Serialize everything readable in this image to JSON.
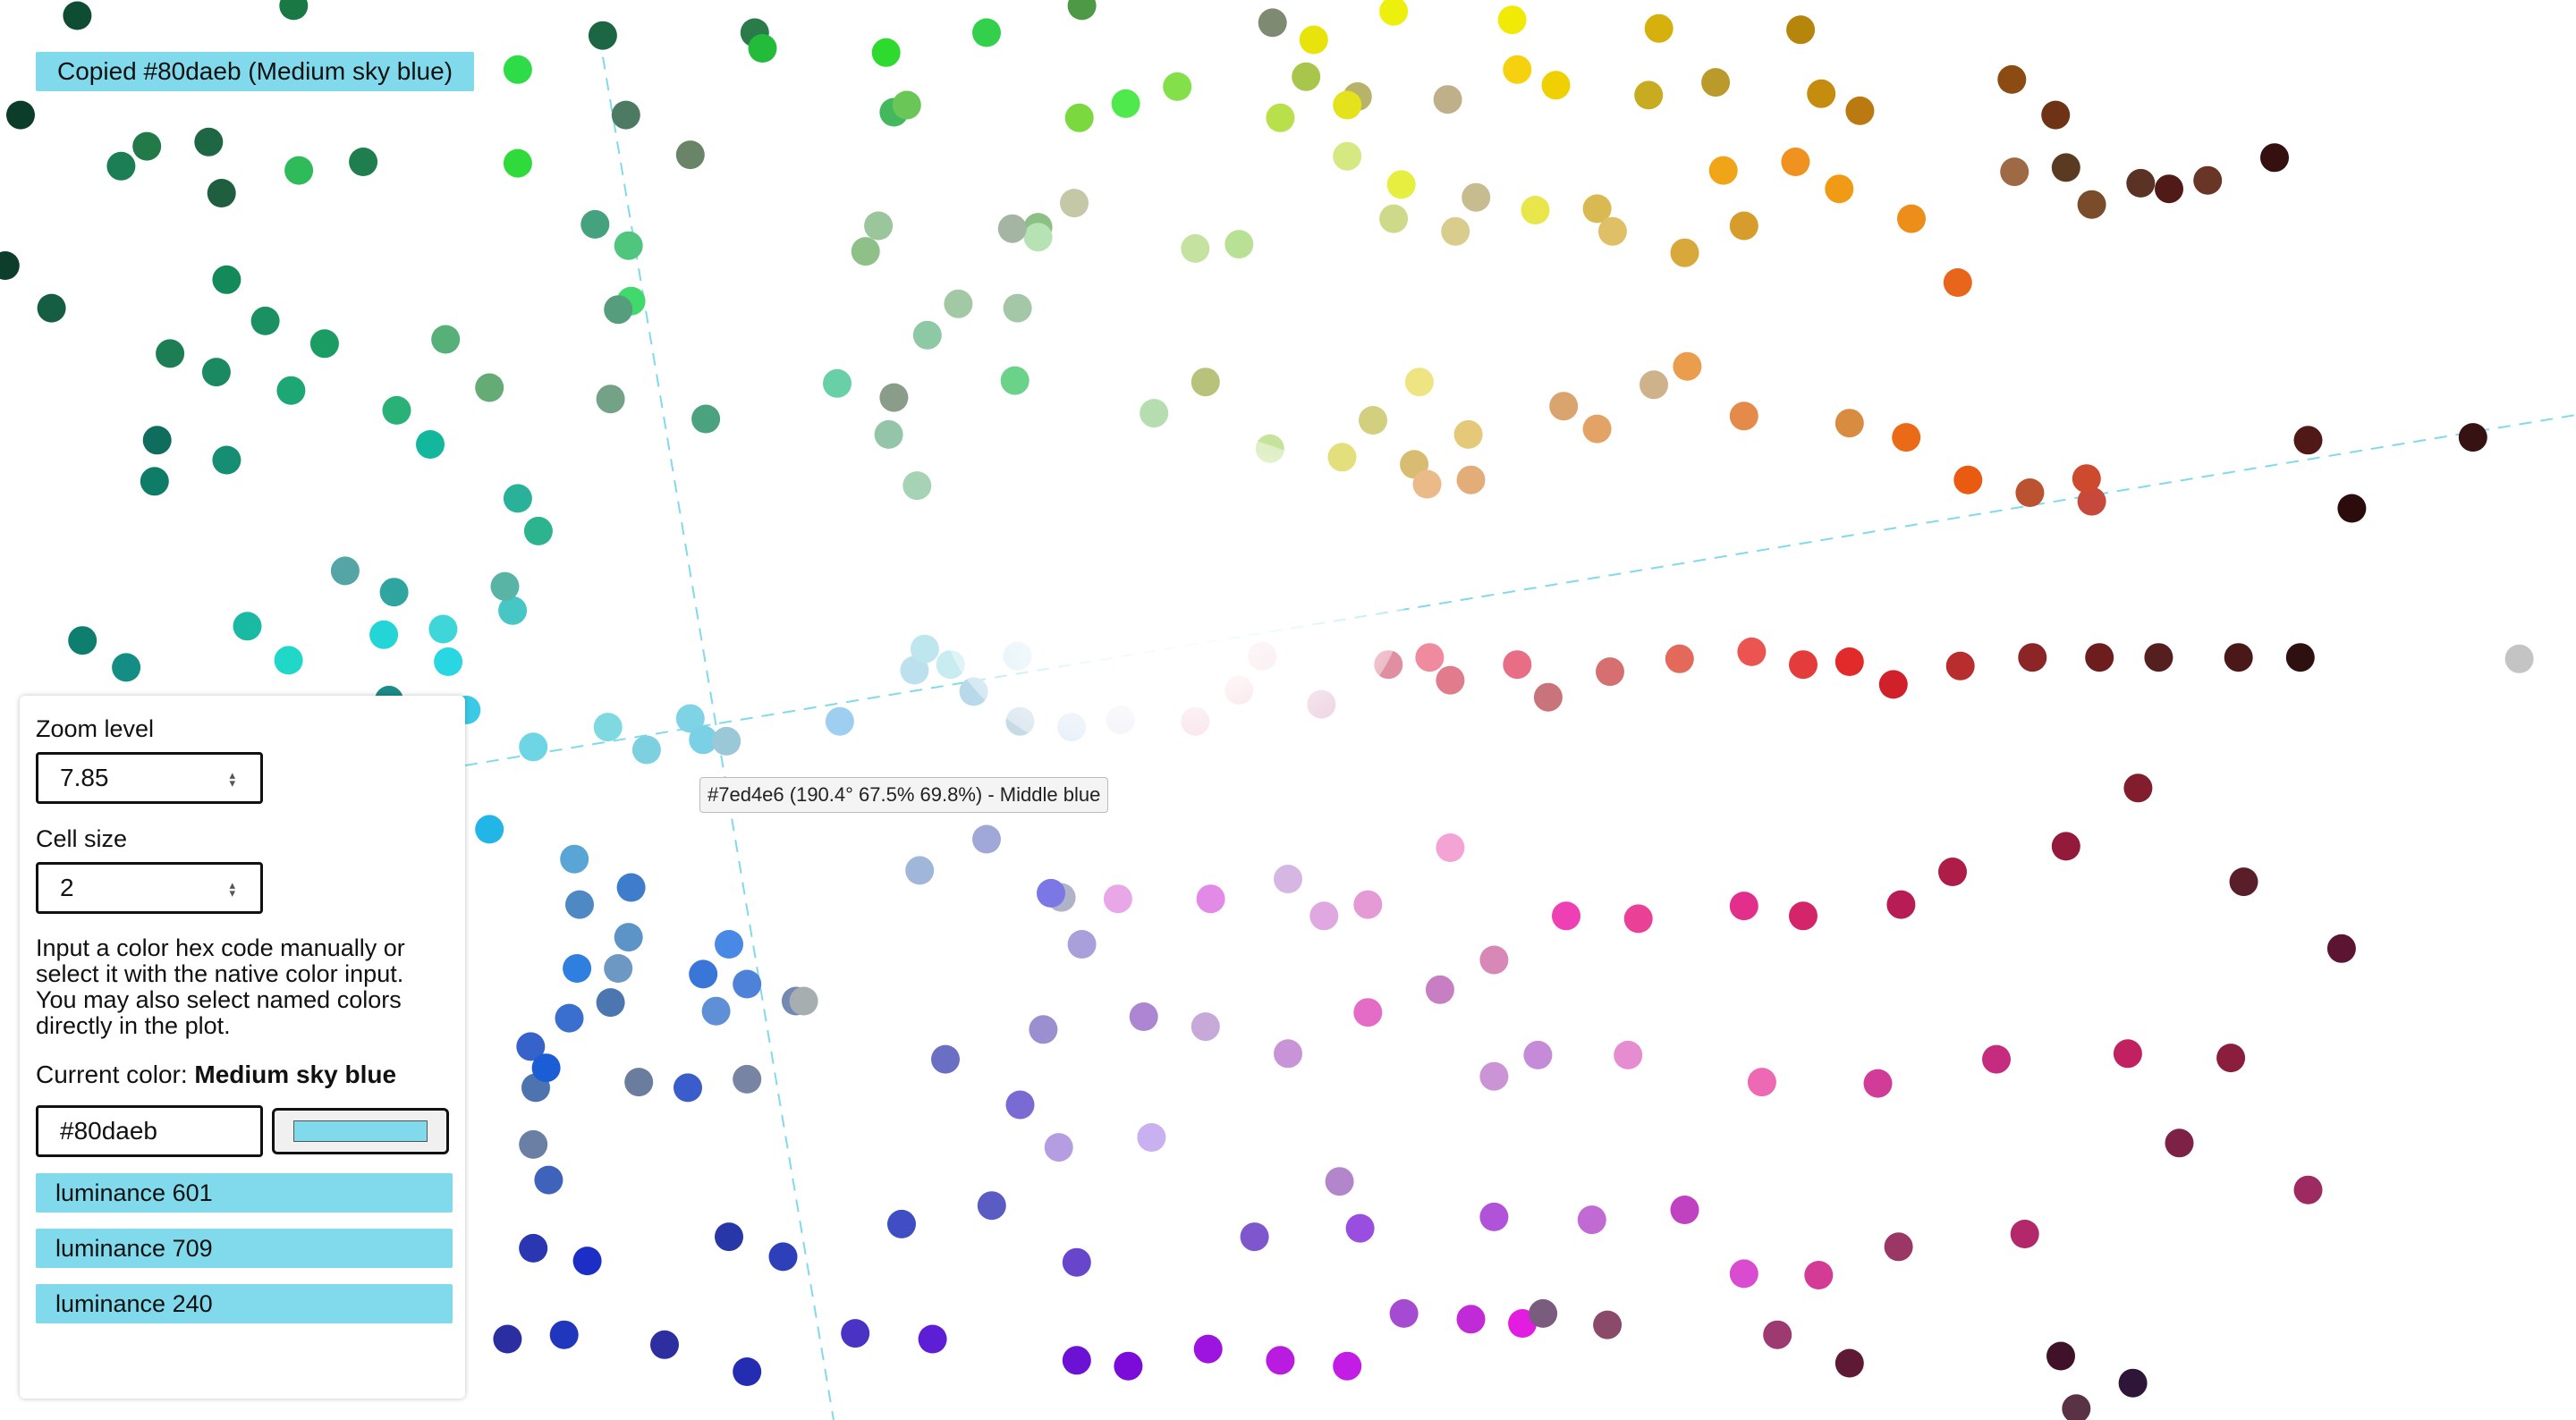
{
  "toast": {
    "text": "Copied #80daeb (Medium sky blue)"
  },
  "tooltip": {
    "text": "#7ed4e6 (190.4° 67.5% 69.8%) - Middle blue"
  },
  "panel": {
    "zoom_label": "Zoom level",
    "zoom_value": "7.85",
    "cell_label": "Cell size",
    "cell_value": "2",
    "info_line1": "Input a color hex code manually or select it with the native color input.",
    "info_line2": "You may also select named colors directly in the plot.",
    "current_label": "Current color:",
    "current_name": "Medium sky blue",
    "hex_value": "#80daeb",
    "swatch_color": "#80daeb",
    "buttons": [
      "luminance 601",
      "luminance 709",
      "luminance 240"
    ]
  },
  "colors": {
    "accent": "#80daeb",
    "axis_line": "#80daeb"
  },
  "plot_points": [
    [
      "#0e4d33",
      0.03,
      0.011
    ],
    [
      "#1a7845",
      0.114,
      0.004
    ],
    [
      "#1d6644",
      0.234,
      0.025
    ],
    [
      "#2a7a4a",
      0.293,
      0.023
    ],
    [
      "#22bb3a",
      0.296,
      0.034
    ],
    [
      "#2fda2f",
      0.344,
      0.037
    ],
    [
      "#33d04b",
      0.383,
      0.023
    ],
    [
      "#4c9a46",
      0.42,
      0.004
    ],
    [
      "#7e8b71",
      0.494,
      0.016
    ],
    [
      "#e8e30b",
      0.51,
      0.028
    ],
    [
      "#edf00c",
      0.541,
      0.008
    ],
    [
      "#f1ea06",
      0.587,
      0.014
    ],
    [
      "#d6b00d",
      0.644,
      0.02
    ],
    [
      "#b6860c",
      0.699,
      0.021
    ],
    [
      "#0c3c2a",
      0.008,
      0.081
    ],
    [
      "#1c7e55",
      0.047,
      0.117
    ],
    [
      "#227a48",
      0.057,
      0.103
    ],
    [
      "#1e6744",
      0.081,
      0.1
    ],
    [
      "#1f5e3f",
      0.086,
      0.136
    ],
    [
      "#2fbb5a",
      0.116,
      0.12
    ],
    [
      "#1f7e4e",
      0.141,
      0.114
    ],
    [
      "#2ddc47",
      0.201,
      0.049
    ],
    [
      "#2edb3a",
      0.201,
      0.115
    ],
    [
      "#4c7a63",
      0.243,
      0.081
    ],
    [
      "#6a8467",
      0.268,
      0.109
    ],
    [
      "#43b85c",
      0.347,
      0.079
    ],
    [
      "#6ac657",
      0.352,
      0.074
    ],
    [
      "#7bd83f",
      0.419,
      0.083
    ],
    [
      "#83e04a",
      0.457,
      0.061
    ],
    [
      "#4fe84d",
      0.437,
      0.073
    ],
    [
      "#b7e04b",
      0.497,
      0.083
    ],
    [
      "#a9c64c",
      0.507,
      0.054
    ],
    [
      "#b7b469",
      0.527,
      0.068
    ],
    [
      "#e4e21b",
      0.523,
      0.074
    ],
    [
      "#bfb08a",
      0.562,
      0.07
    ],
    [
      "#f6d10f",
      0.589,
      0.049
    ],
    [
      "#f0d000",
      0.604,
      0.06
    ],
    [
      "#c8ab21",
      0.64,
      0.067
    ],
    [
      "#ba9a2a",
      0.666,
      0.058
    ],
    [
      "#c68c0d",
      0.707,
      0.066
    ],
    [
      "#bb7911",
      0.722,
      0.078
    ],
    [
      "#8b4b13",
      0.781,
      0.056
    ],
    [
      "#6d3314",
      0.798,
      0.081
    ],
    [
      "#5a3a20",
      0.802,
      0.118
    ],
    [
      "#351010",
      0.883,
      0.111
    ],
    [
      "#501a17",
      0.842,
      0.133
    ],
    [
      "#148a5b",
      0.088,
      0.197
    ],
    [
      "#1a9063",
      0.103,
      0.226
    ],
    [
      "#1d7e55",
      0.066,
      0.249
    ],
    [
      "#1b8a63",
      0.084,
      0.262
    ],
    [
      "#155d43",
      0.02,
      0.217
    ],
    [
      "#0d3e2c",
      0.002,
      0.187
    ],
    [
      "#1b9c63",
      0.126,
      0.242
    ],
    [
      "#1ca774",
      0.113,
      0.275
    ],
    [
      "#2ab177",
      0.154,
      0.289
    ],
    [
      "#56b077",
      0.173,
      0.239
    ],
    [
      "#65ab76",
      0.19,
      0.273
    ],
    [
      "#4fc57d",
      0.244,
      0.173
    ],
    [
      "#41d96c",
      0.245,
      0.212
    ],
    [
      "#44a37e",
      0.231,
      0.158
    ],
    [
      "#559d7d",
      0.24,
      0.218
    ],
    [
      "#9bc59b",
      0.341,
      0.159
    ],
    [
      "#8ec087",
      0.336,
      0.177
    ],
    [
      "#8dc9a4",
      0.36,
      0.236
    ],
    [
      "#a3c9a4",
      0.372,
      0.214
    ],
    [
      "#a4c8a7",
      0.395,
      0.217
    ],
    [
      "#8dc085",
      0.403,
      0.16
    ],
    [
      "#b6e2b4",
      0.403,
      0.167
    ],
    [
      "#c4c8a7",
      0.417,
      0.143
    ],
    [
      "#a4b6a3",
      0.393,
      0.161
    ],
    [
      "#c5e2a1",
      0.464,
      0.175
    ],
    [
      "#b8e196",
      0.481,
      0.172
    ],
    [
      "#d6e882",
      0.523,
      0.11
    ],
    [
      "#cfd98a",
      0.541,
      0.154
    ],
    [
      "#e6ef40",
      0.544,
      0.13
    ],
    [
      "#d9cd8e",
      0.565,
      0.163
    ],
    [
      "#c6bc90",
      0.573,
      0.139
    ],
    [
      "#e8e64a",
      0.596,
      0.148
    ],
    [
      "#d9b951",
      0.62,
      0.147
    ],
    [
      "#e0c066",
      0.626,
      0.163
    ],
    [
      "#d9a83a",
      0.654,
      0.178
    ],
    [
      "#f0a417",
      0.669,
      0.12
    ],
    [
      "#d69d2c",
      0.677,
      0.159
    ],
    [
      "#f09220",
      0.697,
      0.114
    ],
    [
      "#f09a15",
      0.714,
      0.133
    ],
    [
      "#ed8e1a",
      0.742,
      0.154
    ],
    [
      "#e7661b",
      0.76,
      0.199
    ],
    [
      "#9d6a45",
      0.782,
      0.121
    ],
    [
      "#7b4c2a",
      0.812,
      0.144
    ],
    [
      "#5a3325",
      0.831,
      0.129
    ],
    [
      "#693527",
      0.857,
      0.127
    ],
    [
      "#0e6d5c",
      0.061,
      0.31
    ],
    [
      "#0e7c67",
      0.06,
      0.339
    ],
    [
      "#158e74",
      0.088,
      0.324
    ],
    [
      "#13b89c",
      0.167,
      0.313
    ],
    [
      "#2ab199",
      0.201,
      0.351
    ],
    [
      "#2cb48f",
      0.209,
      0.374
    ],
    [
      "#74a286",
      0.237,
      0.281
    ],
    [
      "#4aa27e",
      0.274,
      0.295
    ],
    [
      "#68cfa6",
      0.325,
      0.27
    ],
    [
      "#8a9c8a",
      0.347,
      0.28
    ],
    [
      "#6bd28a",
      0.394,
      0.268
    ],
    [
      "#94c5a8",
      0.345,
      0.306
    ],
    [
      "#a6d3b3",
      0.356,
      0.342
    ],
    [
      "#b5ddaf",
      0.448,
      0.291
    ],
    [
      "#b9c27a",
      0.468,
      0.269
    ],
    [
      "#c7e29a",
      0.493,
      0.316
    ],
    [
      "#d2d07e",
      0.533,
      0.296
    ],
    [
      "#e4df7d",
      0.521,
      0.322
    ],
    [
      "#d8bc72",
      0.549,
      0.327
    ],
    [
      "#efe482",
      0.551,
      0.269
    ],
    [
      "#e6c879",
      0.57,
      0.306
    ],
    [
      "#eabb89",
      0.554,
      0.341
    ],
    [
      "#e3ad7a",
      0.571,
      0.338
    ],
    [
      "#d9a46d",
      0.607,
      0.286
    ],
    [
      "#e3a367",
      0.62,
      0.302
    ],
    [
      "#cdb28b",
      0.642,
      0.271
    ],
    [
      "#eb9d4e",
      0.655,
      0.258
    ],
    [
      "#e48a4a",
      0.677,
      0.293
    ],
    [
      "#d78c40",
      0.718,
      0.298
    ],
    [
      "#eb6a18",
      0.74,
      0.308
    ],
    [
      "#ea5b12",
      0.764,
      0.338
    ],
    [
      "#bc5330",
      0.788,
      0.347
    ],
    [
      "#c6493b",
      0.812,
      0.353
    ],
    [
      "#cd4a2e",
      0.81,
      0.337
    ],
    [
      "#511818",
      0.896,
      0.31
    ],
    [
      "#2b0b0b",
      0.913,
      0.358
    ],
    [
      "#361212",
      0.96,
      0.308
    ],
    [
      "#0e7e6f",
      0.032,
      0.451
    ],
    [
      "#148e85",
      0.049,
      0.47
    ],
    [
      "#1ab9a4",
      0.096,
      0.441
    ],
    [
      "#20d7c8",
      0.112,
      0.465
    ],
    [
      "#23d5d6",
      0.149,
      0.447
    ],
    [
      "#3ed6d8",
      0.172,
      0.443
    ],
    [
      "#2fa5a0",
      0.153,
      0.417
    ],
    [
      "#47c6c6",
      0.199,
      0.43
    ],
    [
      "#1c8b89",
      0.151,
      0.493
    ],
    [
      "#29d7e2",
      0.174,
      0.466
    ],
    [
      "#3bc9e8",
      0.181,
      0.5
    ],
    [
      "#55a4a6",
      0.134,
      0.402
    ],
    [
      "#5ab4a6",
      0.196,
      0.413
    ],
    [
      "#22b6e6",
      0.19,
      0.584
    ],
    [
      "#6ed5e4",
      0.207,
      0.526
    ],
    [
      "#7fd9e1",
      0.236,
      0.512
    ],
    [
      "#7dd0e0",
      0.251,
      0.528
    ],
    [
      "#7ed4e6",
      0.268,
      0.506
    ],
    [
      "#7ad0e5",
      0.273,
      0.521
    ],
    [
      "#9ac8d7",
      0.282,
      0.522
    ],
    [
      "#9ecff0",
      0.326,
      0.508
    ],
    [
      "#bde0ee",
      0.355,
      0.472
    ],
    [
      "#bde6ef",
      0.359,
      0.457
    ],
    [
      "#c8ecf0",
      0.369,
      0.468
    ],
    [
      "#cbe6f2",
      0.395,
      0.462
    ],
    [
      "#b8d9e9",
      0.378,
      0.487
    ],
    [
      "#c7dbe6",
      0.396,
      0.508
    ],
    [
      "#d6e5f4",
      0.416,
      0.512
    ],
    [
      "#e8e6f0",
      0.435,
      0.507
    ],
    [
      "#f1c4d0",
      0.464,
      0.508
    ],
    [
      "#f2b8c2",
      0.481,
      0.486
    ],
    [
      "#eaa8b6",
      0.49,
      0.462
    ],
    [
      "#e2b9cf",
      0.513,
      0.496
    ],
    [
      "#e08ea2",
      0.539,
      0.468
    ],
    [
      "#f08a9e",
      0.555,
      0.463
    ],
    [
      "#e17c8d",
      0.563,
      0.479
    ],
    [
      "#e76e84",
      0.589,
      0.468
    ],
    [
      "#c9747a",
      0.601,
      0.491
    ],
    [
      "#d67070",
      0.625,
      0.473
    ],
    [
      "#e36a5b",
      0.652,
      0.464
    ],
    [
      "#eb5450",
      0.68,
      0.459
    ],
    [
      "#e33c3a",
      0.7,
      0.468
    ],
    [
      "#e12a2a",
      0.718,
      0.466
    ],
    [
      "#d0202a",
      0.735,
      0.482
    ],
    [
      "#b82d2d",
      0.761,
      0.469
    ],
    [
      "#8c2525",
      0.789,
      0.463
    ],
    [
      "#6d1d1d",
      0.815,
      0.463
    ],
    [
      "#561f1f",
      0.838,
      0.463
    ],
    [
      "#4a1818",
      0.869,
      0.463
    ],
    [
      "#2e1010",
      0.893,
      0.463
    ],
    [
      "#c4c4c4",
      0.978,
      0.464
    ],
    [
      "#58a5d6",
      0.223,
      0.605
    ],
    [
      "#4f89c4",
      0.225,
      0.637
    ],
    [
      "#3e7dcb",
      0.245,
      0.625
    ],
    [
      "#5c94c8",
      0.244,
      0.66
    ],
    [
      "#6e98c4",
      0.24,
      0.682
    ],
    [
      "#4b76b0",
      0.237,
      0.706
    ],
    [
      "#2e7fe0",
      0.224,
      0.682
    ],
    [
      "#3a6fcf",
      0.221,
      0.717
    ],
    [
      "#3563c9",
      0.206,
      0.737
    ],
    [
      "#4d74af",
      0.208,
      0.766
    ],
    [
      "#1a5dd4",
      0.212,
      0.752
    ],
    [
      "#6a7d9f",
      0.248,
      0.762
    ],
    [
      "#6a7fa3",
      0.207,
      0.806
    ],
    [
      "#3f62ba",
      0.213,
      0.831
    ],
    [
      "#3a5dcb",
      0.267,
      0.766
    ],
    [
      "#3a75d8",
      0.273,
      0.686
    ],
    [
      "#4989e6",
      0.283,
      0.665
    ],
    [
      "#5f90d7",
      0.278,
      0.712
    ],
    [
      "#4d82d8",
      0.29,
      0.693
    ],
    [
      "#7488b4",
      0.309,
      0.705
    ],
    [
      "#7784a4",
      0.29,
      0.76
    ],
    [
      "#a7aeaf",
      0.312,
      0.705
    ],
    [
      "#8e9ebc",
      0.333,
      0.56
    ],
    [
      "#a1b7da",
      0.357,
      0.613
    ],
    [
      "#9fa8d6",
      0.383,
      0.591
    ],
    [
      "#b0b2c8",
      0.412,
      0.632
    ],
    [
      "#a99fdb",
      0.42,
      0.665
    ],
    [
      "#7b78e6",
      0.408,
      0.629
    ],
    [
      "#e8a8e8",
      0.434,
      0.633
    ],
    [
      "#e38ae7",
      0.47,
      0.633
    ],
    [
      "#d6b7e3",
      0.5,
      0.619
    ],
    [
      "#e0a8e0",
      0.514,
      0.645
    ],
    [
      "#e59ad6",
      0.531,
      0.637
    ],
    [
      "#f3a3d4",
      0.563,
      0.597
    ],
    [
      "#e46bc6",
      0.531,
      0.713
    ],
    [
      "#c77ec3",
      0.559,
      0.697
    ],
    [
      "#d788b7",
      0.58,
      0.676
    ],
    [
      "#ef3fb4",
      0.608,
      0.645
    ],
    [
      "#ea4096",
      0.636,
      0.647
    ],
    [
      "#e22f8b",
      0.677,
      0.638
    ],
    [
      "#d4256b",
      0.7,
      0.645
    ],
    [
      "#b71c54",
      0.738,
      0.637
    ],
    [
      "#ae1c48",
      0.758,
      0.614
    ],
    [
      "#931a3a",
      0.802,
      0.596
    ],
    [
      "#821d2d",
      0.83,
      0.555
    ],
    [
      "#5a1d2a",
      0.871,
      0.621
    ],
    [
      "#6a6fc4",
      0.367,
      0.746
    ],
    [
      "#7a6ad4",
      0.396,
      0.778
    ],
    [
      "#9b8fd0",
      0.405,
      0.725
    ],
    [
      "#b49de0",
      0.411,
      0.808
    ],
    [
      "#c9b0f0",
      0.447,
      0.801
    ],
    [
      "#ad86d2",
      0.444,
      0.716
    ],
    [
      "#c7a9d9",
      0.468,
      0.723
    ],
    [
      "#c993d7",
      0.5,
      0.742
    ],
    [
      "#b386cb",
      0.52,
      0.832
    ],
    [
      "#cb94d5",
      0.58,
      0.758
    ],
    [
      "#c58ad8",
      0.597,
      0.743
    ],
    [
      "#e68cd1",
      0.632,
      0.743
    ],
    [
      "#ed69b3",
      0.684,
      0.762
    ],
    [
      "#d23c99",
      0.729,
      0.763
    ],
    [
      "#c52c80",
      0.775,
      0.746
    ],
    [
      "#c12061",
      0.826,
      0.742
    ],
    [
      "#8b1d3d",
      0.866,
      0.745
    ],
    [
      "#5b1532",
      0.909,
      0.668
    ],
    [
      "#2a37b0",
      0.207,
      0.879
    ],
    [
      "#1d2ec6",
      0.228,
      0.888
    ],
    [
      "#2837a8",
      0.283,
      0.871
    ],
    [
      "#2d3fb9",
      0.304,
      0.885
    ],
    [
      "#3f4ec2",
      0.35,
      0.862
    ],
    [
      "#5b5bc4",
      0.385,
      0.849
    ],
    [
      "#6846cc",
      0.418,
      0.889
    ],
    [
      "#7e57cf",
      0.487,
      0.871
    ],
    [
      "#9a4ee0",
      0.528,
      0.865
    ],
    [
      "#b053d9",
      0.58,
      0.857
    ],
    [
      "#c16ad3",
      0.618,
      0.859
    ],
    [
      "#c042c0",
      0.654,
      0.852
    ],
    [
      "#d94ccf",
      0.677,
      0.897
    ],
    [
      "#d43b94",
      0.706,
      0.898
    ],
    [
      "#9a3764",
      0.737,
      0.878
    ],
    [
      "#b2286a",
      0.786,
      0.869
    ],
    [
      "#7d2146",
      0.846,
      0.805
    ],
    [
      "#9d2a61",
      0.896,
      0.838
    ],
    [
      "#2a2ea0",
      0.197,
      0.943
    ],
    [
      "#2036bd",
      0.219,
      0.94
    ],
    [
      "#2d2ea0",
      0.258,
      0.947
    ],
    [
      "#242cb2",
      0.29,
      0.966
    ],
    [
      "#4932c4",
      0.332,
      0.939
    ],
    [
      "#5d1ed6",
      0.362,
      0.943
    ],
    [
      "#6b12d4",
      0.418,
      0.958
    ],
    [
      "#7b0bd9",
      0.438,
      0.962
    ],
    [
      "#9d13e0",
      0.469,
      0.95
    ],
    [
      "#b91be0",
      0.497,
      0.958
    ],
    [
      "#c21ce5",
      0.523,
      0.962
    ],
    [
      "#a44bd1",
      0.545,
      0.925
    ],
    [
      "#c12ad7",
      0.571,
      0.929
    ],
    [
      "#e21ce0",
      0.591,
      0.932
    ],
    [
      "#7a5d7e",
      0.599,
      0.925
    ],
    [
      "#8b4a6a",
      0.624,
      0.933
    ],
    [
      "#9c3a71",
      0.69,
      0.94
    ],
    [
      "#5e1a34",
      0.718,
      0.96
    ],
    [
      "#40122a",
      0.8,
      0.955
    ],
    [
      "#5a3246",
      0.806,
      0.992
    ],
    [
      "#2f1538",
      0.828,
      0.974
    ]
  ]
}
